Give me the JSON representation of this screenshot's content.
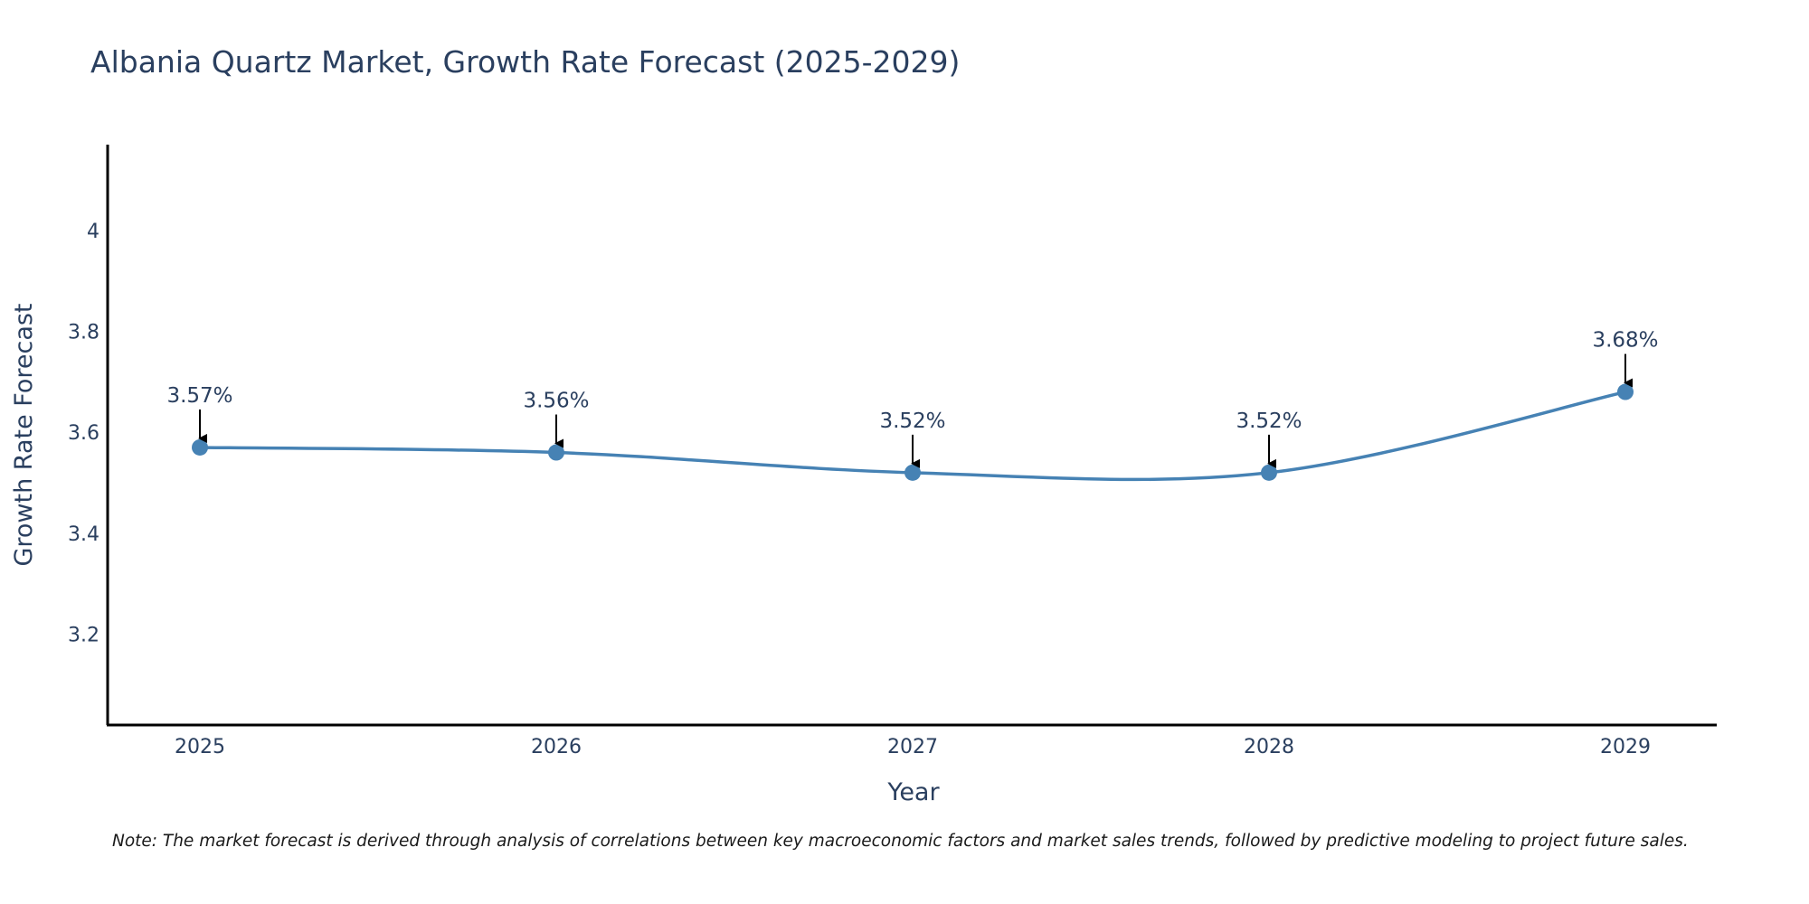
{
  "chart_data": {
    "type": "line",
    "title": "Albania Quartz Market, Growth Rate Forecast (2025-2029)",
    "xlabel": "Year",
    "ylabel": "Growth Rate Forecast",
    "x": [
      "2025",
      "2026",
      "2027",
      "2028",
      "2029"
    ],
    "series": [
      {
        "name": "Growth Rate Forecast",
        "values": [
          3.57,
          3.56,
          3.52,
          3.52,
          3.68
        ],
        "labels": [
          "3.57%",
          "3.56%",
          "3.52%",
          "3.52%",
          "3.68%"
        ],
        "color": "#4682b4"
      }
    ],
    "y_ticks": [
      "3.2",
      "3.4",
      "3.6",
      "3.8",
      "4"
    ],
    "y_tick_values": [
      3.2,
      3.4,
      3.6,
      3.8,
      4.0
    ],
    "ylim": [
      3.02,
      4.17
    ],
    "grid": false,
    "line_shape": "spline",
    "annotation_arrows": true
  },
  "note": "Note: The market forecast is derived through analysis of correlations between key macroeconomic factors and market sales trends, followed by predictive modeling to project future sales."
}
